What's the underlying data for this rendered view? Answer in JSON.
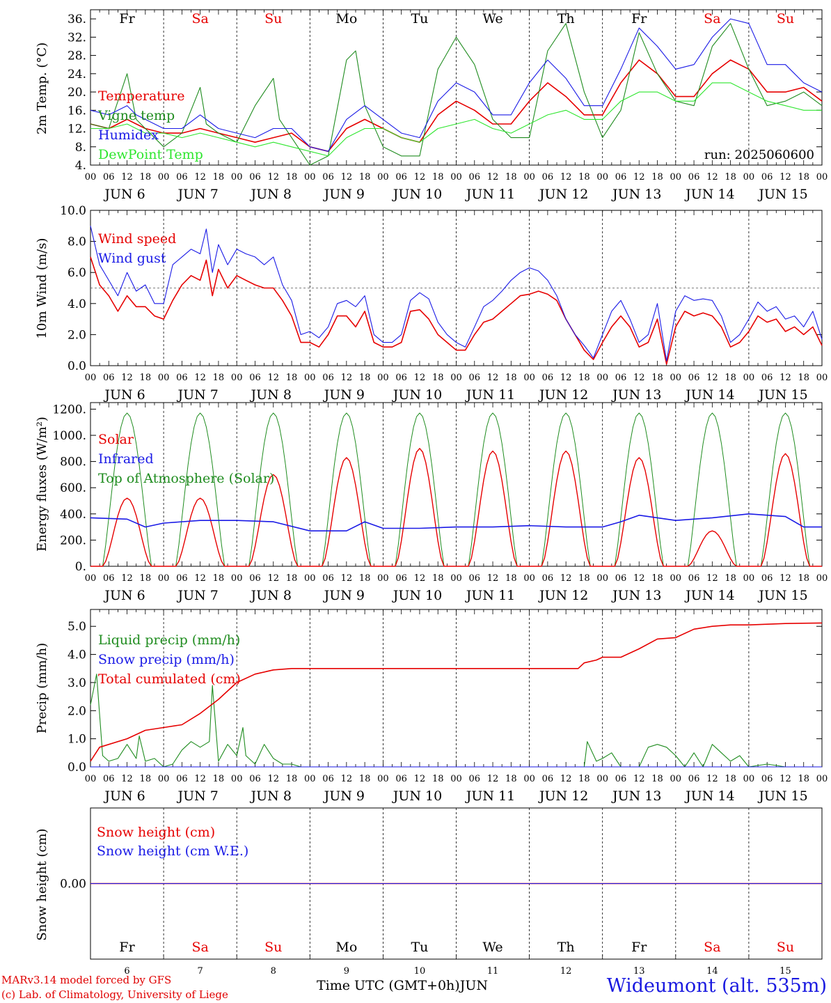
{
  "colors": {
    "red": "#e60000",
    "green": "#1f8c1f",
    "blue": "#1a1ae6",
    "light_green": "#2ee62e",
    "weekend": "#e60000",
    "weekday": "#000000"
  },
  "day_names": [
    {
      "label": "Fr",
      "weekend": false
    },
    {
      "label": "Sa",
      "weekend": true
    },
    {
      "label": "Su",
      "weekend": true
    },
    {
      "label": "Mo",
      "weekend": false
    },
    {
      "label": "Tu",
      "weekend": false
    },
    {
      "label": "We",
      "weekend": false
    },
    {
      "label": "Th",
      "weekend": false
    },
    {
      "label": "Fr",
      "weekend": false
    },
    {
      "label": "Sa",
      "weekend": true
    },
    {
      "label": "Su",
      "weekend": true
    }
  ],
  "date_labels": [
    "JUN 6",
    "JUN 7",
    "JUN 8",
    "JUN 9",
    "JUN 10",
    "JUN 11",
    "JUN 12",
    "JUN 13",
    "JUN 14",
    "JUN 15"
  ],
  "day_numbers": [
    "6",
    "7",
    "8",
    "9",
    "10",
    "11",
    "12",
    "13",
    "14",
    "15"
  ],
  "hour_labels": [
    "00",
    "06",
    "12",
    "18"
  ],
  "footer": {
    "credit_line1": "MARv3.14 model forced by GFS",
    "credit_line2": "(c) Lab. of Climatology, University of Liege",
    "x_axis_title": "Time UTC (GMT+0h)",
    "month": "JUN",
    "station": "Wideumont (alt. 535m)"
  },
  "chart_data": [
    {
      "type": "line",
      "ylabel": "2m Temp. (°C)",
      "ylim": [
        4,
        38
      ],
      "yticks": [
        "4.",
        "8.",
        "12.",
        "16.",
        "20.",
        "24.",
        "28.",
        "32.",
        "36."
      ],
      "annotation": "run: 2025060600",
      "x_unit": "hours since Jun 6 00 UTC",
      "series": [
        {
          "name": "Temperature",
          "color": "red",
          "x": [
            0,
            6,
            12,
            15,
            18,
            24,
            30,
            36,
            42,
            48,
            54,
            60,
            66,
            72,
            78,
            84,
            90,
            96,
            102,
            108,
            114,
            120,
            126,
            132,
            138,
            144,
            150,
            156,
            162,
            168,
            174,
            180,
            186,
            192,
            198,
            204,
            210,
            216,
            222,
            228,
            234,
            240
          ],
          "y": [
            13,
            12,
            14,
            13,
            12,
            11,
            11,
            12,
            11,
            10,
            9,
            10,
            11,
            8,
            7,
            12,
            14,
            12,
            10,
            9,
            15,
            18,
            16,
            13,
            13,
            18,
            22,
            19,
            15,
            15,
            22,
            27,
            24,
            19,
            19,
            24,
            27,
            25,
            20,
            20,
            21,
            18
          ]
        },
        {
          "name": "Vigne temp",
          "color": "green",
          "x": [
            0,
            6,
            12,
            15,
            18,
            24,
            30,
            36,
            38,
            42,
            48,
            54,
            60,
            62,
            66,
            72,
            78,
            84,
            87,
            90,
            96,
            102,
            108,
            114,
            120,
            126,
            132,
            138,
            144,
            150,
            156,
            162,
            168,
            174,
            180,
            186,
            192,
            198,
            204,
            210,
            216,
            222,
            228,
            234,
            240
          ],
          "y": [
            13,
            12,
            24,
            14,
            12,
            8,
            11,
            21,
            13,
            11,
            9,
            17,
            23,
            14,
            10,
            4,
            6,
            27,
            29,
            17,
            8,
            6,
            6,
            25,
            32,
            26,
            14,
            10,
            10,
            29,
            35,
            20,
            10,
            16,
            33,
            24,
            18,
            17,
            30,
            35,
            25,
            17,
            18,
            20,
            17
          ]
        },
        {
          "name": "Humidex",
          "color": "blue",
          "x": [
            0,
            6,
            12,
            15,
            18,
            24,
            30,
            36,
            42,
            48,
            54,
            60,
            66,
            72,
            78,
            84,
            90,
            96,
            102,
            108,
            114,
            120,
            126,
            132,
            138,
            144,
            150,
            156,
            162,
            168,
            174,
            180,
            186,
            192,
            198,
            204,
            210,
            216,
            222,
            228,
            234,
            240
          ],
          "y": [
            16,
            15,
            17,
            15,
            14,
            12,
            12,
            15,
            12,
            11,
            10,
            12,
            12,
            8,
            7,
            14,
            17,
            14,
            11,
            10,
            18,
            22,
            20,
            15,
            15,
            22,
            27,
            23,
            17,
            17,
            25,
            34,
            30,
            25,
            26,
            32,
            36,
            35,
            26,
            26,
            22,
            20
          ]
        },
        {
          "name": "DewPoint Temp",
          "color": "light_green",
          "x": [
            0,
            6,
            12,
            18,
            24,
            30,
            36,
            42,
            48,
            54,
            60,
            66,
            72,
            78,
            84,
            90,
            96,
            102,
            108,
            114,
            120,
            126,
            132,
            138,
            144,
            150,
            156,
            162,
            168,
            174,
            180,
            186,
            192,
            198,
            204,
            210,
            216,
            222,
            228,
            234,
            240
          ],
          "y": [
            12,
            12,
            13,
            11,
            11,
            10,
            11,
            10,
            9,
            8,
            9,
            8,
            7,
            6,
            10,
            12,
            12,
            10,
            9,
            12,
            13,
            14,
            12,
            11,
            13,
            15,
            16,
            14,
            14,
            18,
            20,
            20,
            18,
            18,
            22,
            22,
            20,
            18,
            17,
            16,
            16
          ]
        }
      ]
    },
    {
      "type": "line",
      "ylabel": "10m Wind (m/s)",
      "ylim": [
        0,
        10
      ],
      "yticks": [
        "0.0",
        "2.0",
        "4.0",
        "6.0",
        "8.0",
        "10.0"
      ],
      "reference_line": 5,
      "x_unit": "hours since Jun 6 00 UTC",
      "series": [
        {
          "name": "Wind speed",
          "color": "red",
          "x": [
            0,
            3,
            6,
            9,
            12,
            15,
            18,
            21,
            24,
            27,
            30,
            33,
            36,
            38,
            40,
            42,
            45,
            48,
            51,
            54,
            57,
            60,
            63,
            66,
            69,
            72,
            75,
            78,
            81,
            84,
            87,
            90,
            93,
            96,
            99,
            102,
            105,
            108,
            111,
            114,
            117,
            120,
            123,
            126,
            129,
            132,
            135,
            138,
            141,
            144,
            147,
            150,
            153,
            156,
            159,
            162,
            165,
            168,
            171,
            174,
            177,
            180,
            183,
            186,
            189,
            192,
            195,
            198,
            201,
            204,
            207,
            210,
            213,
            216,
            219,
            222,
            225,
            228,
            231,
            234,
            237,
            240
          ],
          "y": [
            7.0,
            5.2,
            4.5,
            3.5,
            4.5,
            3.8,
            3.8,
            3.2,
            3.0,
            4.2,
            5.2,
            5.8,
            5.5,
            6.8,
            4.5,
            6.2,
            5.0,
            5.8,
            5.5,
            5.2,
            5.0,
            5.0,
            4.2,
            3.2,
            1.5,
            1.5,
            1.2,
            2.0,
            3.2,
            3.2,
            2.5,
            3.5,
            1.5,
            1.2,
            1.2,
            1.5,
            3.5,
            3.6,
            3.0,
            2.0,
            1.5,
            1.0,
            1.0,
            2.0,
            2.8,
            3.0,
            3.5,
            4.0,
            4.5,
            4.6,
            4.8,
            4.6,
            4.2,
            3.0,
            2.0,
            1.0,
            0.4,
            1.5,
            2.5,
            3.2,
            2.5,
            1.2,
            1.5,
            3.0,
            0.1,
            2.5,
            3.5,
            3.2,
            3.4,
            3.2,
            2.5,
            1.2,
            1.5,
            2.2,
            3.2,
            2.8,
            3.0,
            2.2,
            2.5,
            2.0,
            2.5,
            1.3
          ]
        },
        {
          "name": "Wind gust",
          "color": "blue",
          "x": [
            0,
            3,
            6,
            9,
            12,
            15,
            18,
            21,
            24,
            27,
            30,
            33,
            36,
            38,
            40,
            42,
            45,
            48,
            51,
            54,
            57,
            60,
            63,
            66,
            69,
            72,
            75,
            78,
            81,
            84,
            87,
            90,
            93,
            96,
            99,
            102,
            105,
            108,
            111,
            114,
            117,
            120,
            123,
            126,
            129,
            132,
            135,
            138,
            141,
            144,
            147,
            150,
            153,
            156,
            159,
            162,
            165,
            168,
            171,
            174,
            177,
            180,
            183,
            186,
            189,
            192,
            195,
            198,
            201,
            204,
            207,
            210,
            213,
            216,
            219,
            222,
            225,
            228,
            231,
            234,
            237,
            240
          ],
          "y": [
            9.0,
            6.5,
            5.5,
            4.5,
            6.0,
            4.8,
            5.2,
            4.0,
            4.0,
            6.5,
            7.0,
            7.5,
            7.2,
            8.8,
            6.0,
            7.8,
            6.5,
            7.5,
            7.2,
            7.0,
            6.5,
            7.0,
            5.2,
            4.2,
            2.0,
            2.2,
            1.8,
            2.5,
            4.0,
            4.2,
            3.8,
            4.5,
            2.0,
            1.5,
            1.5,
            2.0,
            4.2,
            4.7,
            4.3,
            2.8,
            2.0,
            1.5,
            1.2,
            2.5,
            3.8,
            4.2,
            4.8,
            5.5,
            6.0,
            6.3,
            6.1,
            5.5,
            4.5,
            3.0,
            2.0,
            1.3,
            0.5,
            2.0,
            3.5,
            4.2,
            3.0,
            1.5,
            2.0,
            4.0,
            0.3,
            3.5,
            4.5,
            4.2,
            4.3,
            4.2,
            3.2,
            1.5,
            2.0,
            3.0,
            4.1,
            3.5,
            3.8,
            3.0,
            3.2,
            2.5,
            3.5,
            1.7
          ]
        }
      ]
    },
    {
      "type": "line",
      "ylabel": "Energy fluxes (W/m²)",
      "ylim": [
        0,
        1250
      ],
      "yticks": [
        "0.",
        "200.",
        "400.",
        "600.",
        "800.",
        "1000.",
        "1200."
      ],
      "x_unit": "hours since Jun 6 00 UTC",
      "daily_peak_toa": 1170,
      "daily_peak_solar": [
        520,
        520,
        700,
        830,
        900,
        880,
        880,
        830,
        270,
        860
      ],
      "series": [
        {
          "name": "Solar",
          "color": "red",
          "note": "daily curve, peaks listed in daily_peak_solar"
        },
        {
          "name": "Infrared",
          "color": "blue",
          "x": [
            0,
            12,
            18,
            24,
            36,
            48,
            60,
            72,
            84,
            90,
            96,
            108,
            120,
            132,
            144,
            156,
            168,
            174,
            180,
            192,
            204,
            216,
            228,
            234,
            240
          ],
          "y": [
            370,
            360,
            300,
            330,
            350,
            350,
            340,
            270,
            270,
            340,
            290,
            290,
            300,
            300,
            310,
            300,
            300,
            340,
            390,
            350,
            370,
            400,
            380,
            300,
            300
          ]
        },
        {
          "name": "Top of Atmosphere (Solar)",
          "color": "green",
          "note": "daily curve, peak daily_peak_toa"
        }
      ]
    },
    {
      "type": "line",
      "ylabel": "Precip (mm/h)",
      "ylim": [
        0,
        5.6
      ],
      "yticks": [
        "0.0",
        "1.0",
        "2.0",
        "3.0",
        "4.0",
        "5.0"
      ],
      "x_unit": "hours since Jun 6 00 UTC",
      "series": [
        {
          "name": "Liquid precip (mm/h)",
          "color": "green",
          "x": [
            0,
            2,
            4,
            6,
            9,
            12,
            15,
            16,
            18,
            21,
            24,
            27,
            30,
            33,
            36,
            39,
            40,
            42,
            45,
            48,
            50,
            51,
            54,
            57,
            60,
            63,
            66,
            69,
            72,
            96,
            120,
            144,
            162,
            163,
            166,
            168,
            171,
            174,
            180,
            183,
            186,
            189,
            192,
            195,
            198,
            201,
            204,
            207,
            210,
            213,
            216,
            222,
            228,
            234,
            240
          ],
          "y": [
            2.2,
            3.3,
            0.4,
            0.2,
            0.3,
            0.8,
            0.3,
            1.1,
            0.2,
            0.3,
            0.0,
            0.1,
            0.6,
            0.9,
            0.7,
            0.9,
            2.9,
            0.2,
            0.8,
            0.4,
            1.4,
            0.4,
            0.1,
            0.8,
            0.3,
            0.1,
            0.1,
            0.0,
            0.0,
            0.0,
            0.0,
            0.0,
            0.0,
            0.9,
            0.2,
            0.3,
            0.5,
            0.0,
            0.0,
            0.7,
            0.8,
            0.7,
            0.4,
            0.0,
            0.5,
            0.0,
            0.8,
            0.5,
            0.2,
            0.4,
            0.0,
            0.1,
            0.0,
            0.0,
            0.0
          ]
        },
        {
          "name": "Snow precip (mm/h)",
          "color": "blue",
          "x": [
            0,
            240
          ],
          "y": [
            0,
            0
          ]
        },
        {
          "name": "Total cumulated (cm)",
          "color": "red",
          "x": [
            0,
            3,
            12,
            18,
            24,
            30,
            36,
            42,
            48,
            54,
            60,
            66,
            72,
            96,
            120,
            144,
            160,
            162,
            166,
            168,
            174,
            180,
            186,
            192,
            198,
            204,
            210,
            216,
            228,
            240
          ],
          "y": [
            0.2,
            0.7,
            1.0,
            1.3,
            1.4,
            1.5,
            1.9,
            2.4,
            3.0,
            3.3,
            3.45,
            3.5,
            3.5,
            3.5,
            3.5,
            3.5,
            3.5,
            3.7,
            3.8,
            3.9,
            3.9,
            4.2,
            4.55,
            4.6,
            4.9,
            5.0,
            5.05,
            5.05,
            5.1,
            5.12
          ]
        }
      ]
    },
    {
      "type": "line",
      "ylabel": "Snow height (cm)",
      "yticks": [
        "0.00"
      ],
      "series": [
        {
          "name": "Snow height (cm)",
          "color": "red",
          "x": [
            0,
            240
          ],
          "y": [
            0,
            0
          ]
        },
        {
          "name": "Snow height (cm W.E.)",
          "color": "blue",
          "x": [
            0,
            240
          ],
          "y": [
            0,
            0
          ]
        }
      ]
    }
  ]
}
